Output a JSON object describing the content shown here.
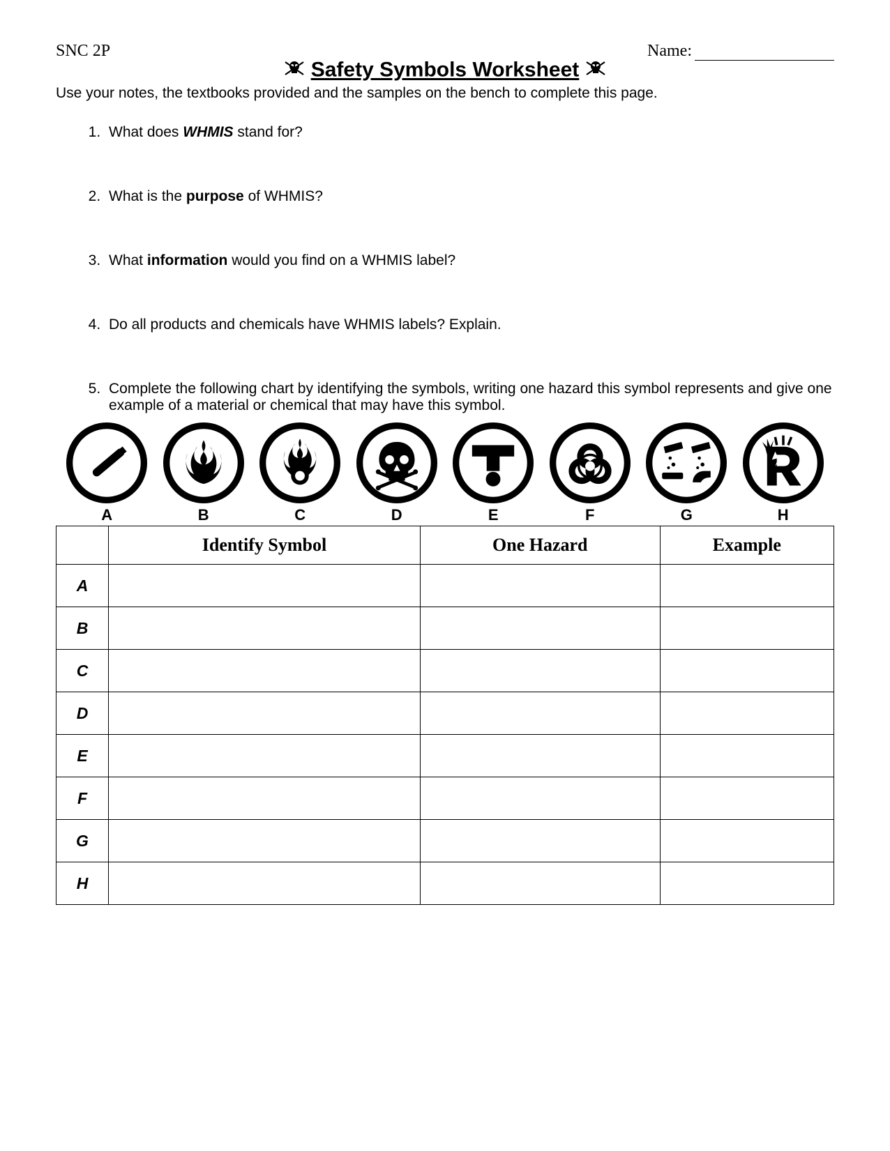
{
  "header": {
    "course_code": "SNC 2P",
    "name_label": "Name:"
  },
  "title": "Safety Symbols Worksheet",
  "instruction": "Use your notes, the textbooks provided and the samples on the bench to complete this page.",
  "questions": {
    "q1_pre": "What does ",
    "q1_bold": "WHMIS",
    "q1_post": " stand for?",
    "q2_pre": "What is the ",
    "q2_bold": "purpose",
    "q2_post": " of WHMIS?",
    "q3_pre": "What ",
    "q3_bold": "information",
    "q3_post": " would you find on a WHMIS label?",
    "q4": "Do all products and chemicals have WHMIS labels? Explain.",
    "q5": "Complete the following chart by identifying the symbols, writing one hazard this symbol represents and give one example of a material or chemical that may have this symbol."
  },
  "symbols": {
    "labels": [
      "A",
      "B",
      "C",
      "D",
      "E",
      "F",
      "G",
      "H"
    ],
    "size": 116,
    "stroke": "#000000",
    "fill_bg": "#ffffff"
  },
  "table": {
    "headers": [
      "",
      "Identify Symbol",
      "One Hazard",
      "Example"
    ],
    "rows": [
      "A",
      "B",
      "C",
      "D",
      "E",
      "F",
      "G",
      "H"
    ]
  }
}
